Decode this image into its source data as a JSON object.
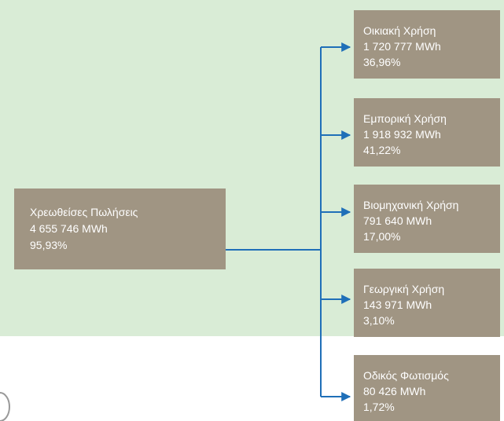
{
  "source": {
    "label": "Χρεωθείσες Πωλήσεις",
    "value": "4 655 746 MWh",
    "percent": "95,93%"
  },
  "nodes": [
    {
      "label": "Οικιακή Χρήση",
      "value": "1 720 777 MWh",
      "percent": "36,96%"
    },
    {
      "label": "Εμπορική Χρήση",
      "value": "1 918 932 MWh",
      "percent": "41,22%"
    },
    {
      "label": "Βιομηχανική Χρήση",
      "value": "791 640 MWh",
      "percent": "17,00%"
    },
    {
      "label": "Γεωργική Χρήση",
      "value": "143 971 MWh",
      "percent": "3,10%"
    },
    {
      "label": "Οδικός Φωτισμός",
      "value": "80 426 MWh",
      "percent": "1,72%"
    }
  ]
}
